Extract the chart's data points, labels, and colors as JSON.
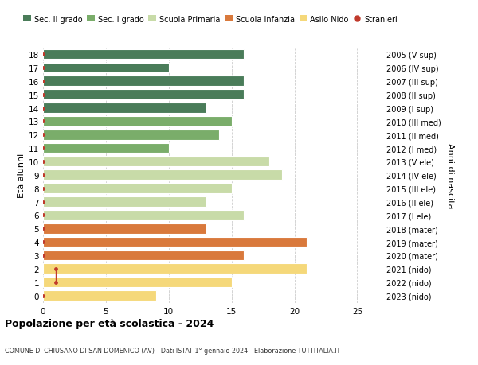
{
  "ages": [
    18,
    17,
    16,
    15,
    14,
    13,
    12,
    11,
    10,
    9,
    8,
    7,
    6,
    5,
    4,
    3,
    2,
    1,
    0
  ],
  "years": [
    "2005 (V sup)",
    "2006 (IV sup)",
    "2007 (III sup)",
    "2008 (II sup)",
    "2009 (I sup)",
    "2010 (III med)",
    "2011 (II med)",
    "2012 (I med)",
    "2013 (V ele)",
    "2014 (IV ele)",
    "2015 (III ele)",
    "2016 (II ele)",
    "2017 (I ele)",
    "2018 (mater)",
    "2019 (mater)",
    "2020 (mater)",
    "2021 (nido)",
    "2022 (nido)",
    "2023 (nido)"
  ],
  "values": [
    16,
    10,
    16,
    16,
    13,
    15,
    14,
    10,
    18,
    19,
    15,
    13,
    16,
    13,
    21,
    16,
    21,
    15,
    9
  ],
  "stranieri": [
    0,
    0,
    0,
    0,
    0,
    0,
    0,
    0,
    0,
    0,
    0,
    0,
    0,
    0,
    0,
    0,
    1,
    1,
    0
  ],
  "bar_colors": [
    "#4a7c59",
    "#4a7c59",
    "#4a7c59",
    "#4a7c59",
    "#4a7c59",
    "#7aad6a",
    "#7aad6a",
    "#7aad6a",
    "#c8dba8",
    "#c8dba8",
    "#c8dba8",
    "#c8dba8",
    "#c8dba8",
    "#d9793c",
    "#d9793c",
    "#d9793c",
    "#f5d87a",
    "#f5d87a",
    "#f5d87a"
  ],
  "legend_labels": [
    "Sec. II grado",
    "Sec. I grado",
    "Scuola Primaria",
    "Scuola Infanzia",
    "Asilo Nido",
    "Stranieri"
  ],
  "legend_colors": [
    "#4a7c59",
    "#7aad6a",
    "#c8dba8",
    "#d9793c",
    "#f5d87a",
    "#c0392b"
  ],
  "ylabel_left": "Età alunni",
  "ylabel_right": "Anni di nascita",
  "xlim": [
    0,
    27
  ],
  "title": "Popolazione per età scolastica - 2024",
  "subtitle": "COMUNE DI CHIUSANO DI SAN DOMENICO (AV) - Dati ISTAT 1° gennaio 2024 - Elaborazione TUTTITALIA.IT",
  "background_color": "#ffffff",
  "grid_color": "#cccccc",
  "bar_height": 0.75,
  "xticks": [
    0,
    5,
    10,
    15,
    20,
    25
  ],
  "stranieri_dot_color": "#c0392b",
  "stranieri_line_ages": [
    1,
    2
  ],
  "stranieri_line_vals": [
    1,
    1
  ]
}
